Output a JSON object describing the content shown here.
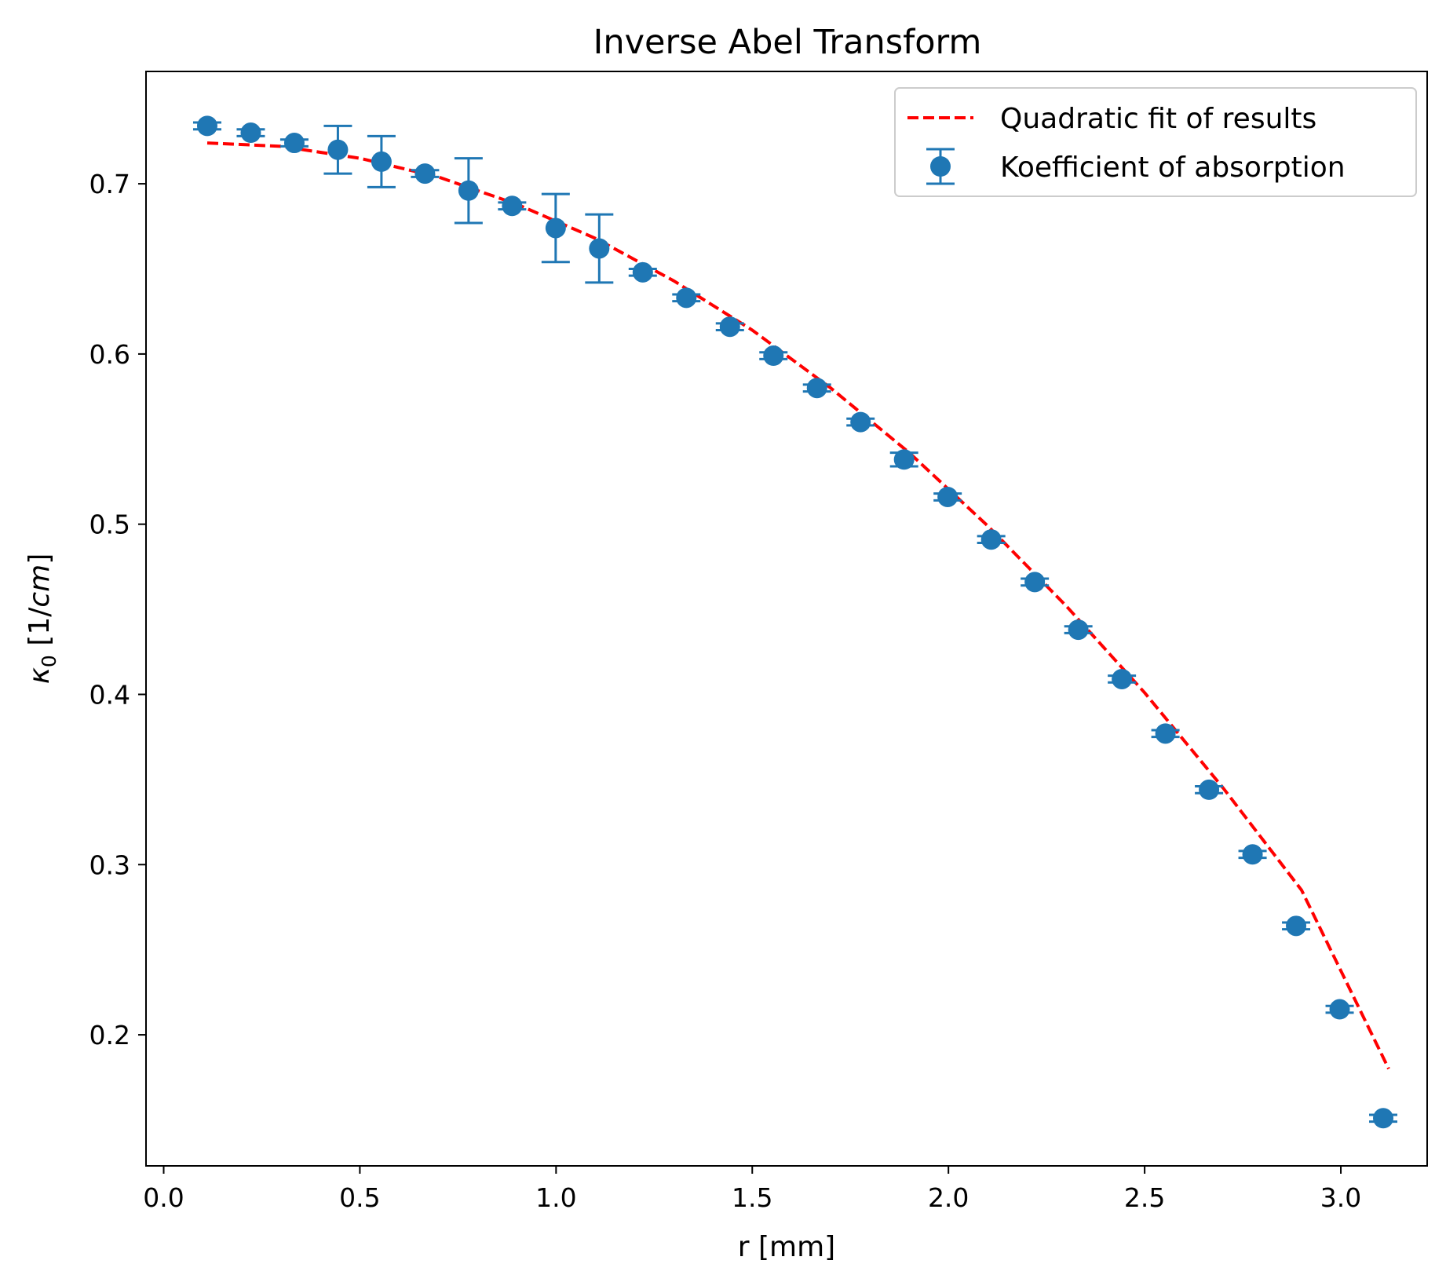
{
  "chart_data": {
    "type": "scatter",
    "title": "Inverse Abel Transform",
    "xlabel": "r [mm]",
    "ylabel": {
      "symbol": "κ",
      "subscript": "0",
      "unit_open": " [1/",
      "unit_italic": "cm",
      "unit_close": "]"
    },
    "xlim": [
      -0.045,
      3.22
    ],
    "ylim": [
      0.123,
      0.766
    ],
    "x_ticks": [
      0.0,
      0.5,
      1.0,
      1.5,
      2.0,
      2.5,
      3.0
    ],
    "x_tick_labels": [
      "0.0",
      "0.5",
      "1.0",
      "1.5",
      "2.0",
      "2.5",
      "3.0"
    ],
    "y_ticks": [
      0.2,
      0.3,
      0.4,
      0.5,
      0.6,
      0.7
    ],
    "y_tick_labels": [
      "0.2",
      "0.3",
      "0.4",
      "0.5",
      "0.6",
      "0.7"
    ],
    "grid": false,
    "legend_position": "top-right",
    "series": [
      {
        "name": "Quadratic fit of results",
        "kind": "line",
        "style": "dashed",
        "color": "#ff0000",
        "x": [
          0.111,
          0.3,
          0.5,
          0.7,
          0.9,
          1.1,
          1.3,
          1.5,
          1.7,
          1.9,
          2.1,
          2.3,
          2.5,
          2.7,
          2.9,
          3.122
        ],
        "y": [
          0.724,
          0.722,
          0.715,
          0.704,
          0.688,
          0.668,
          0.643,
          0.614,
          0.58,
          0.542,
          0.499,
          0.452,
          0.401,
          0.345,
          0.285,
          0.18
        ]
      },
      {
        "name": "Koefficient of absorption",
        "kind": "errorbar",
        "color": "#1f77b4",
        "x": [
          0.111,
          0.222,
          0.333,
          0.444,
          0.555,
          0.666,
          0.777,
          0.888,
          0.999,
          1.11,
          1.221,
          1.332,
          1.443,
          1.554,
          1.665,
          1.776,
          1.887,
          1.998,
          2.109,
          2.22,
          2.331,
          2.442,
          2.553,
          2.664,
          2.775,
          2.886,
          2.997,
          3.108
        ],
        "y": [
          0.734,
          0.73,
          0.724,
          0.72,
          0.713,
          0.706,
          0.696,
          0.687,
          0.674,
          0.662,
          0.648,
          0.633,
          0.616,
          0.599,
          0.58,
          0.56,
          0.538,
          0.516,
          0.491,
          0.466,
          0.438,
          0.409,
          0.377,
          0.344,
          0.306,
          0.264,
          0.215,
          0.151
        ],
        "yerr": [
          0.002,
          0.002,
          0.002,
          0.014,
          0.015,
          0.002,
          0.019,
          0.002,
          0.02,
          0.02,
          0.002,
          0.002,
          0.002,
          0.002,
          0.002,
          0.002,
          0.004,
          0.002,
          0.002,
          0.002,
          0.002,
          0.002,
          0.002,
          0.002,
          0.002,
          0.002,
          0.002,
          0.002
        ]
      }
    ]
  }
}
